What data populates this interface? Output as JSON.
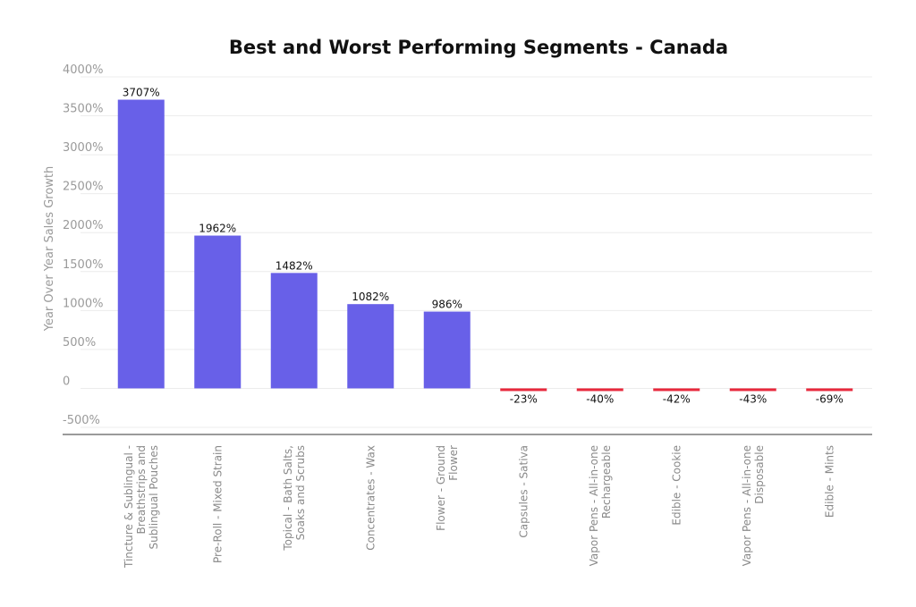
{
  "chart_data": {
    "type": "bar",
    "title": "Best and Worst Performing Segments - Canada",
    "ylabel": "Year Over Year Sales Growth",
    "xlabel": "",
    "ylim": [
      -500,
      4000
    ],
    "yticks": [
      "4000%",
      "3500%",
      "3000%",
      "2500%",
      "2000%",
      "1500%",
      "1000%",
      "500%",
      "0",
      "-500%"
    ],
    "ytick_values": [
      4000,
      3500,
      3000,
      2500,
      2000,
      1500,
      1000,
      500,
      0,
      -500
    ],
    "grid": true,
    "legend": "none",
    "categories": [
      [
        "Tincture & Sublingual -",
        "Breathstrips and",
        "Sublingual Pouches"
      ],
      [
        "Pre-Roll - Mixed Strain"
      ],
      [
        "Topical - Bath Salts,",
        "Soaks and Scrubs"
      ],
      [
        "Concentrates - Wax"
      ],
      [
        "Flower - Ground",
        "Flower"
      ],
      [
        "Capsules - Sativa"
      ],
      [
        "Vapor Pens - All-in-one",
        "Rechargeable"
      ],
      [
        "Edible - Cookie"
      ],
      [
        "Vapor Pens - All-in-one",
        "Disposable"
      ],
      [
        "Edible - Mints"
      ]
    ],
    "values": [
      3707,
      1962,
      1482,
      1082,
      986,
      -23,
      -40,
      -42,
      -43,
      -69
    ],
    "data_labels": [
      "3707%",
      "1962%",
      "1482%",
      "1082%",
      "986%",
      "-23%",
      "-40%",
      "-42%",
      "-43%",
      "-69%"
    ],
    "colors": {
      "positive": "#6860E8",
      "negative": "#E8283C"
    }
  }
}
